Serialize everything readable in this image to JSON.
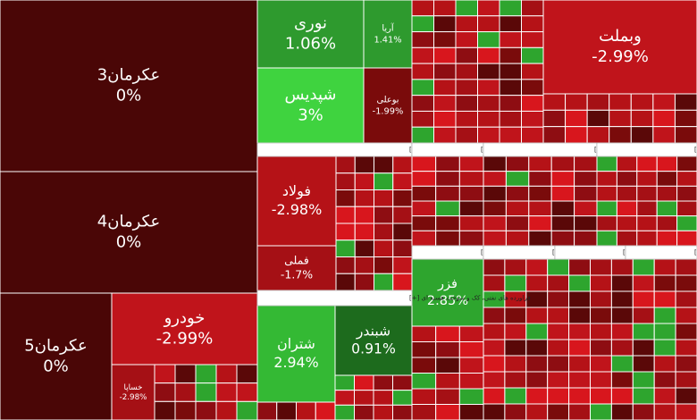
{
  "chart_data": {
    "type": "treemap",
    "tiles": [
      {
        "label": "عکرمان3",
        "value": 0,
        "value_label": "0%",
        "color": "#4a0606"
      },
      {
        "label": "عکرمان4",
        "value": 0,
        "value_label": "0%",
        "color": "#4a0606"
      },
      {
        "label": "عکرمان5",
        "value": 0,
        "value_label": "0%",
        "color": "#4a0606"
      },
      {
        "label": "خودرو",
        "value": -2.99,
        "value_label": "-2.99%",
        "color": "#c0141b"
      },
      {
        "label": "نوری",
        "value": 1.06,
        "value_label": "1.06%",
        "color": "#2e9a2e"
      },
      {
        "label": "آریا",
        "value": 1.41,
        "value_label": "1.41%",
        "color": "#2e9a2e"
      },
      {
        "label": "شپدیس",
        "value": 3,
        "value_label": "3%",
        "color": "#3fd33f"
      },
      {
        "label": "بوعلی",
        "value": -1.99,
        "value_label": "-1.99%",
        "color": "#7a0b0b"
      },
      {
        "label": "وبملت",
        "value": -2.99,
        "value_label": "-2.99%",
        "color": "#c0141b"
      },
      {
        "label": "فولاد",
        "value": -2.98,
        "value_label": "-2.98%",
        "color": "#b51217"
      },
      {
        "label": "فملی",
        "value": -1.7,
        "value_label": "-1.7%",
        "color": "#a51015"
      },
      {
        "label": "شبندر",
        "value": 0.91,
        "value_label": "0.91%",
        "color": "#1d6b1d"
      },
      {
        "label": "شتران",
        "value": 2.94,
        "value_label": "2.94%",
        "color": "#34b934"
      },
      {
        "label": "فزر",
        "value": 2.85,
        "value_label": "2.85%",
        "color": "#2ea52e"
      },
      {
        "label": "خساپا",
        "value": -2.98,
        "value_label": "-2.98%",
        "color": "#a51015"
      }
    ],
    "groups": [
      {
        "label": "فلزات اساسی [+]"
      },
      {
        "label": "سرمایه گذاریها [+]"
      },
      {
        "label": "مواد و محصولات دارویی [+]"
      },
      {
        "label": "سیمان، آهک و گچ [+]"
      },
      {
        "label": "فراورده های نفتی، کک و سوخت هسته ای [+]"
      },
      {
        "label": "استخراج کانه ها [+]"
      },
      {
        "label": "محصولات غذا [+]"
      },
      {
        "label": "زراعت و خدما [+]"
      },
      {
        "label": "بیمه وصندو [+]"
      }
    ]
  }
}
